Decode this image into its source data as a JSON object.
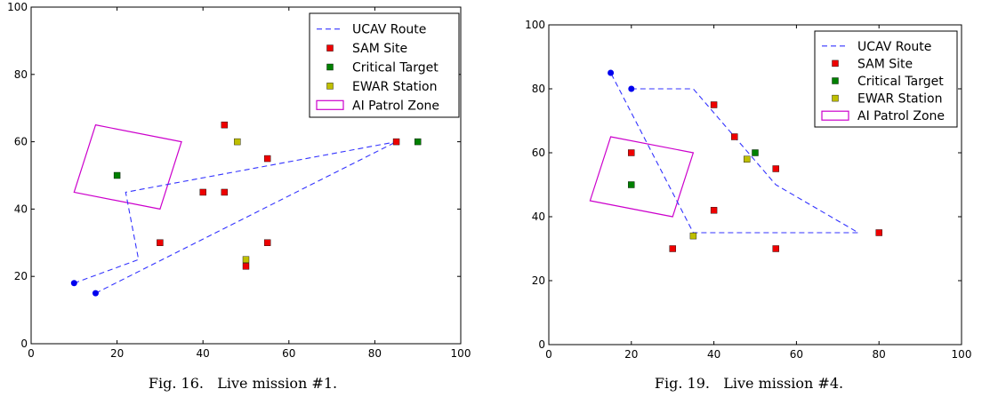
{
  "legend_labels": {
    "route": "UCAV Route",
    "sam": "SAM Site",
    "target": "Critical Target",
    "ewar": "EWAR Station",
    "patrol": "AI Patrol Zone"
  },
  "colors": {
    "route": "#3333ff",
    "start_marker": "#0000ee",
    "sam": "#ee0000",
    "target": "#008000",
    "ewar": "#bfbf00",
    "patrol": "#cc00cc"
  },
  "chart_data": [
    {
      "type": "scatter",
      "caption": "Fig. 16.   Live mission #1.",
      "xlim": [
        0,
        100
      ],
      "ylim": [
        0,
        100
      ],
      "xticks": [
        "0",
        "20",
        "40",
        "60",
        "80",
        "100"
      ],
      "yticks": [
        "0",
        "20",
        "40",
        "60",
        "80",
        "100"
      ],
      "grid": false,
      "legend_position": "top-right",
      "routes": [
        [
          [
            10,
            18
          ],
          [
            25,
            25
          ],
          [
            22,
            45
          ],
          [
            85,
            60
          ]
        ],
        [
          [
            15,
            15
          ],
          [
            85,
            60
          ]
        ]
      ],
      "route_starts": [
        [
          10,
          18
        ],
        [
          15,
          15
        ]
      ],
      "sam_sites": [
        [
          45,
          65
        ],
        [
          55,
          55
        ],
        [
          40,
          45
        ],
        [
          45,
          45
        ],
        [
          30,
          30
        ],
        [
          55,
          30
        ],
        [
          50,
          23
        ],
        [
          85,
          60
        ]
      ],
      "critical_targets": [
        [
          20,
          50
        ],
        [
          90,
          60
        ]
      ],
      "ewar_stations": [
        [
          48,
          60
        ],
        [
          50,
          25
        ]
      ],
      "patrol_zone": [
        [
          15,
          65
        ],
        [
          35,
          60
        ],
        [
          30,
          40
        ],
        [
          10,
          45
        ]
      ]
    },
    {
      "type": "scatter",
      "caption": "Fig. 19.   Live mission #4.",
      "xlim": [
        0,
        100
      ],
      "ylim": [
        0,
        100
      ],
      "xticks": [
        "0",
        "20",
        "40",
        "60",
        "80",
        "100"
      ],
      "yticks": [
        "0",
        "20",
        "40",
        "60",
        "80",
        "100"
      ],
      "grid": false,
      "legend_position": "top-right",
      "routes": [
        [
          [
            20,
            80
          ],
          [
            35,
            80
          ],
          [
            55,
            50
          ],
          [
            75,
            35
          ],
          [
            35,
            35
          ],
          [
            15,
            85
          ]
        ]
      ],
      "route_starts": [
        [
          15,
          85
        ],
        [
          20,
          80
        ]
      ],
      "sam_sites": [
        [
          40,
          75
        ],
        [
          45,
          65
        ],
        [
          20,
          60
        ],
        [
          55,
          55
        ],
        [
          40,
          42
        ],
        [
          30,
          30
        ],
        [
          55,
          30
        ],
        [
          80,
          35
        ]
      ],
      "critical_targets": [
        [
          50,
          60
        ],
        [
          20,
          50
        ]
      ],
      "ewar_stations": [
        [
          48,
          58
        ],
        [
          35,
          34
        ]
      ],
      "patrol_zone": [
        [
          15,
          65
        ],
        [
          35,
          60
        ],
        [
          30,
          40
        ],
        [
          10,
          45
        ]
      ]
    }
  ]
}
